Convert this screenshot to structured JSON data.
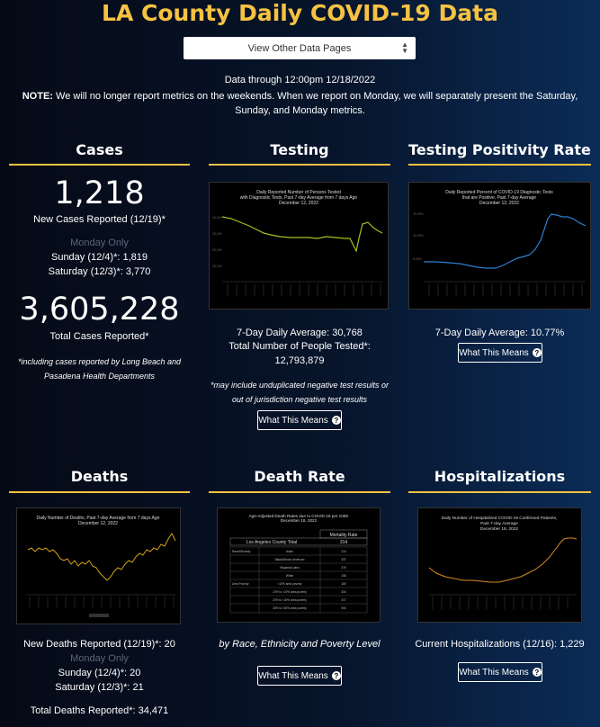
{
  "page": {
    "title": "LA County Daily COVID-19 Data",
    "selector_label": "View Other Data Pages",
    "data_through": "Data through 12:00pm 12/18/2022",
    "note_label": "NOTE:",
    "note_text": " We will no longer report metrics on the weekends. When we report on Monday, we will separately present the Saturday, Sunday, and Monday metrics."
  },
  "cases": {
    "title": "Cases",
    "new_count": "1,218",
    "new_label": "New Cases Reported (12/19)*",
    "monday_only": "Monday Only",
    "sunday": "Sunday (12/4)*: 1,819",
    "saturday": "Saturday (12/3)*: 3,770",
    "total_count": "3,605,228",
    "total_label": "Total Cases Reported*",
    "footnote": "*including cases reported by Long Beach and Pasadena Health Departments"
  },
  "testing": {
    "title": "Testing",
    "chart_title": "Daily Reported Number of Persons Tested with Diagnostic Tests, Past 7-day Average from 7 days Ago December 12, 2022",
    "avg": "7-Day Daily Average: 30,768",
    "total_label": "Total Number of People Tested*:",
    "total_value": "12,793,879",
    "footnote": "*may include unduplicated negative test results or out of jurisdiction negative test results",
    "button": "What This Means"
  },
  "positivity": {
    "title": "Testing Positivity Rate",
    "chart_title": "Daily Reported Percent of COVID-19 Diagnostic Tests that are Positive, Past 7-day Average December 12, 2022",
    "avg": "7-Day Daily Average: 10.77%",
    "button": "What This Means"
  },
  "deaths": {
    "title": "Deaths",
    "chart_title": "Daily Number of Deaths, Past 7-day Average from 7 days Ago December 12, 2022",
    "new_label": "New Deaths Reported (12/19)*: 20",
    "monday_only": "Monday Only",
    "sunday": "Sunday (12/4)*: 20",
    "saturday": "Saturday (12/3)*: 21",
    "total": "Total Deaths Reported*: 34,471"
  },
  "death_rate": {
    "title": "Death Rate",
    "chart_title": "Age-Adjusted Death Rates due to COVID-19 per 100K December 18, 2022",
    "col_header": "Mortality Rate",
    "county_label": "Los Angeles County Total",
    "county_value": "314",
    "rows": [
      {
        "group": "Race/Ethnicity",
        "label": "Asian",
        "value": "214"
      },
      {
        "group": "",
        "label": "Black/African American",
        "value": "337"
      },
      {
        "group": "",
        "label": "Hispanic/Latino",
        "value": "376"
      },
      {
        "group": "",
        "label": "White",
        "value": "198"
      },
      {
        "group": "Area Poverty",
        "label": "<10% area poverty",
        "value": "180"
      },
      {
        "group": "",
        "label": "10% to <20% area poverty",
        "value": "334"
      },
      {
        "group": "",
        "label": "20% to <30% area poverty",
        "value": "417"
      },
      {
        "group": "",
        "label": "30% to 100% area poverty",
        "value": "500"
      }
    ],
    "caption": "by Race, Ethnicity and Poverty Level",
    "button": "What This Means"
  },
  "hospital": {
    "title": "Hospitalizations",
    "chart_title": "Daily Number of Hospitalized COVID-19 Confirmed Patients, Past 7-day Average December 18, 2022",
    "current": "Current Hospitalizations (12/16): 1,229",
    "button": "What This Means"
  },
  "colors": {
    "accent": "#f5c242",
    "testing_line": "#a8c020",
    "positivity_line": "#2e7fd0",
    "deaths_line": "#d4a017",
    "hospital_line": "#d88a2a"
  }
}
